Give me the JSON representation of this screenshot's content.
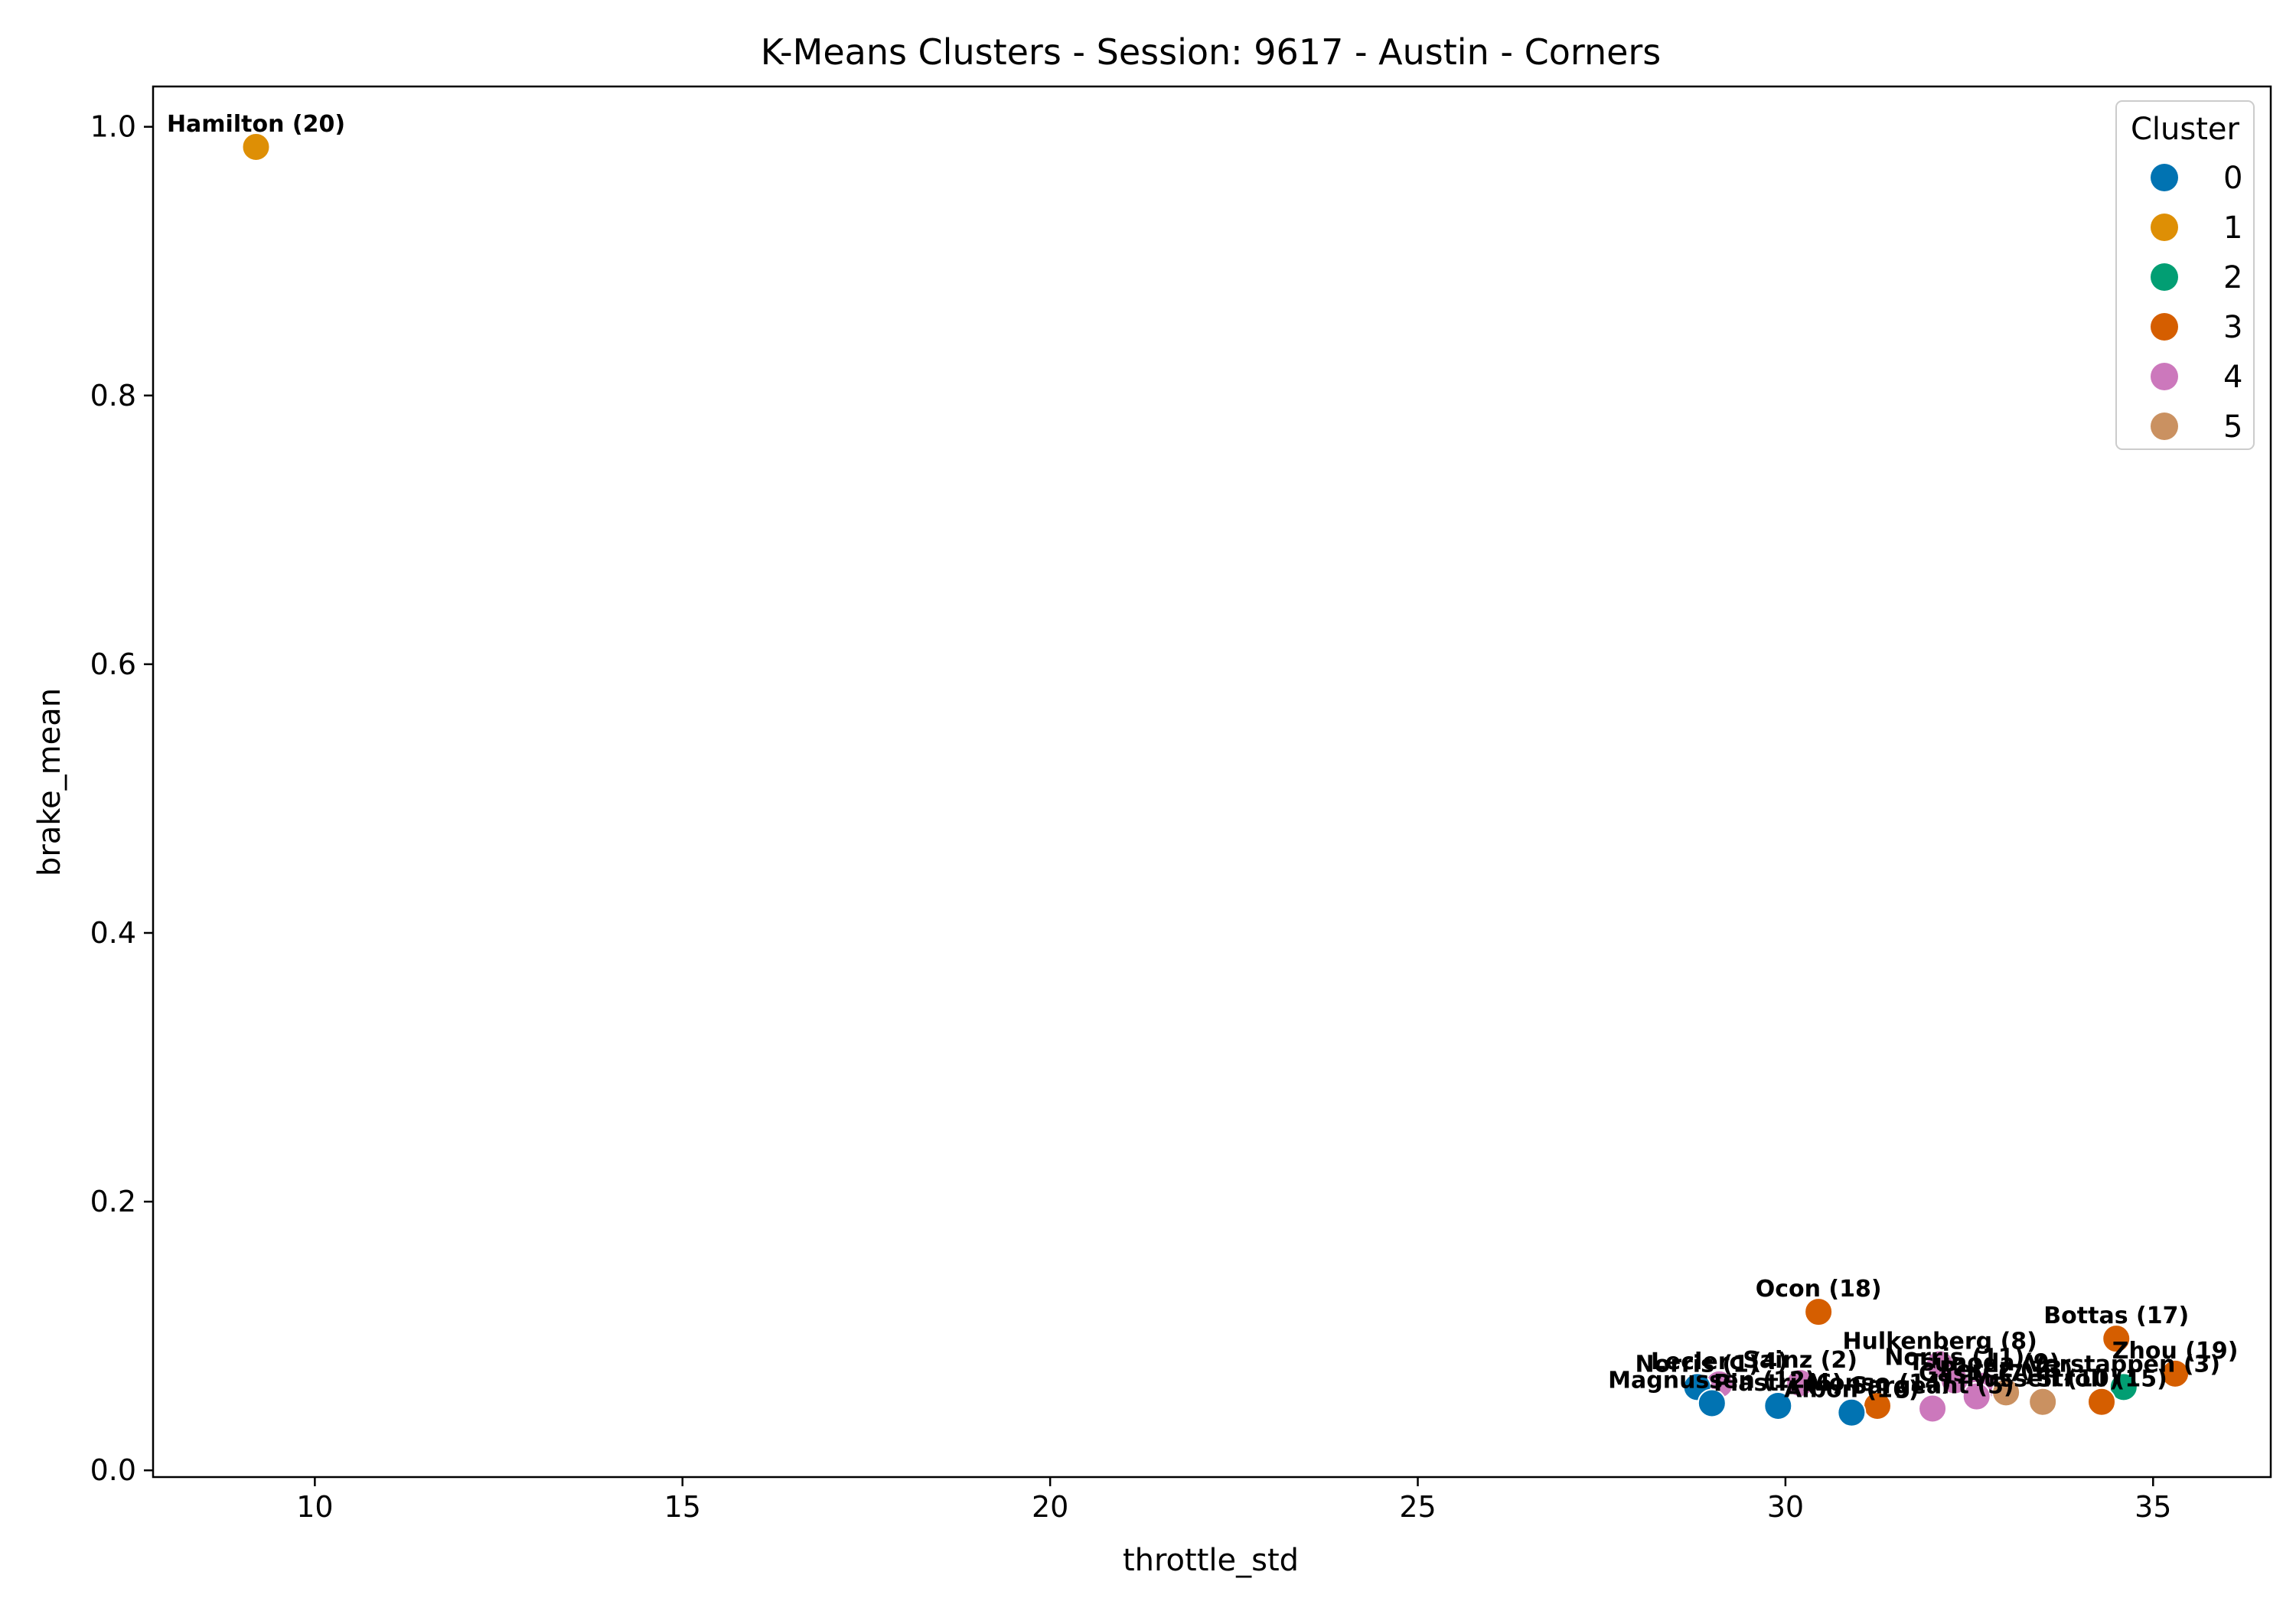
{
  "chart_data": {
    "type": "scatter",
    "title": "K-Means Clusters - Session: 9617 - Austin - Corners",
    "xlabel": "throttle_std",
    "ylabel": "brake_mean",
    "xlim": [
      7.8,
      36.6
    ],
    "ylim": [
      -0.005,
      1.03
    ],
    "xticks": [
      10,
      15,
      20,
      25,
      30,
      35
    ],
    "yticks": [
      0.0,
      0.2,
      0.4,
      0.6,
      0.8,
      1.0
    ],
    "xtick_labels": [
      "10",
      "15",
      "20",
      "25",
      "30",
      "35"
    ],
    "ytick_labels": [
      "0.0",
      "0.2",
      "0.4",
      "0.6",
      "0.8",
      "1.0"
    ],
    "grid": false,
    "legend": {
      "title": "Cluster",
      "placement": "top-right",
      "entries": [
        {
          "label": "0",
          "color": "#0173b2"
        },
        {
          "label": "1",
          "color": "#de8f05"
        },
        {
          "label": "2",
          "color": "#029e73"
        },
        {
          "label": "3",
          "color": "#d55e00"
        },
        {
          "label": "4",
          "color": "#cc78bc"
        },
        {
          "label": "5",
          "color": "#ca9161"
        }
      ]
    },
    "points": [
      {
        "label": "Hamilton (20)",
        "x": 9.2,
        "y": 0.985,
        "cluster": 1
      },
      {
        "label": "Ocon (18)",
        "x": 30.45,
        "y": 0.118,
        "cluster": 3
      },
      {
        "label": "Bottas (17)",
        "x": 34.5,
        "y": 0.098,
        "cluster": 3
      },
      {
        "label": "Zhou (19)",
        "x": 35.3,
        "y": 0.072,
        "cluster": 3
      },
      {
        "label": "Verstappen (3)",
        "x": 34.6,
        "y": 0.062,
        "cluster": 2
      },
      {
        "label": "Hulkenberg (8)",
        "x": 32.1,
        "y": 0.079,
        "cluster": 4
      },
      {
        "label": "Norris (11)",
        "x": 32.3,
        "y": 0.067,
        "cluster": 4
      },
      {
        "label": "Tsunoda (9)",
        "x": 32.7,
        "y": 0.063,
        "cluster": 4
      },
      {
        "label": "Gasly (7)",
        "x": 32.6,
        "y": 0.055,
        "cluster": 4
      },
      {
        "label": "Perez (13)",
        "x": 33.0,
        "y": 0.058,
        "cluster": 5
      },
      {
        "label": "Russell (10)",
        "x": 33.5,
        "y": 0.051,
        "cluster": 5
      },
      {
        "label": "Stroll (15)",
        "x": 34.3,
        "y": 0.051,
        "cluster": 3
      },
      {
        "label": "Alonso (14)",
        "x": 31.25,
        "y": 0.048,
        "cluster": 3
      },
      {
        "label": "Sargeant (5)",
        "x": 32.0,
        "y": 0.046,
        "cluster": 4
      },
      {
        "label": "Albon (16)",
        "x": 30.9,
        "y": 0.043,
        "cluster": 0
      },
      {
        "label": "Sainz (2)",
        "x": 30.2,
        "y": 0.065,
        "cluster": 4
      },
      {
        "label": "Leclerc (4)",
        "x": 29.1,
        "y": 0.064,
        "cluster": 4
      },
      {
        "label": "Norris (1)",
        "x": 28.8,
        "y": 0.062,
        "cluster": 0
      },
      {
        "label": "Magnussen (12)",
        "x": 29.0,
        "y": 0.05,
        "cluster": 0
      },
      {
        "label": "Piastri (6)",
        "x": 29.9,
        "y": 0.048,
        "cluster": 0
      }
    ]
  }
}
